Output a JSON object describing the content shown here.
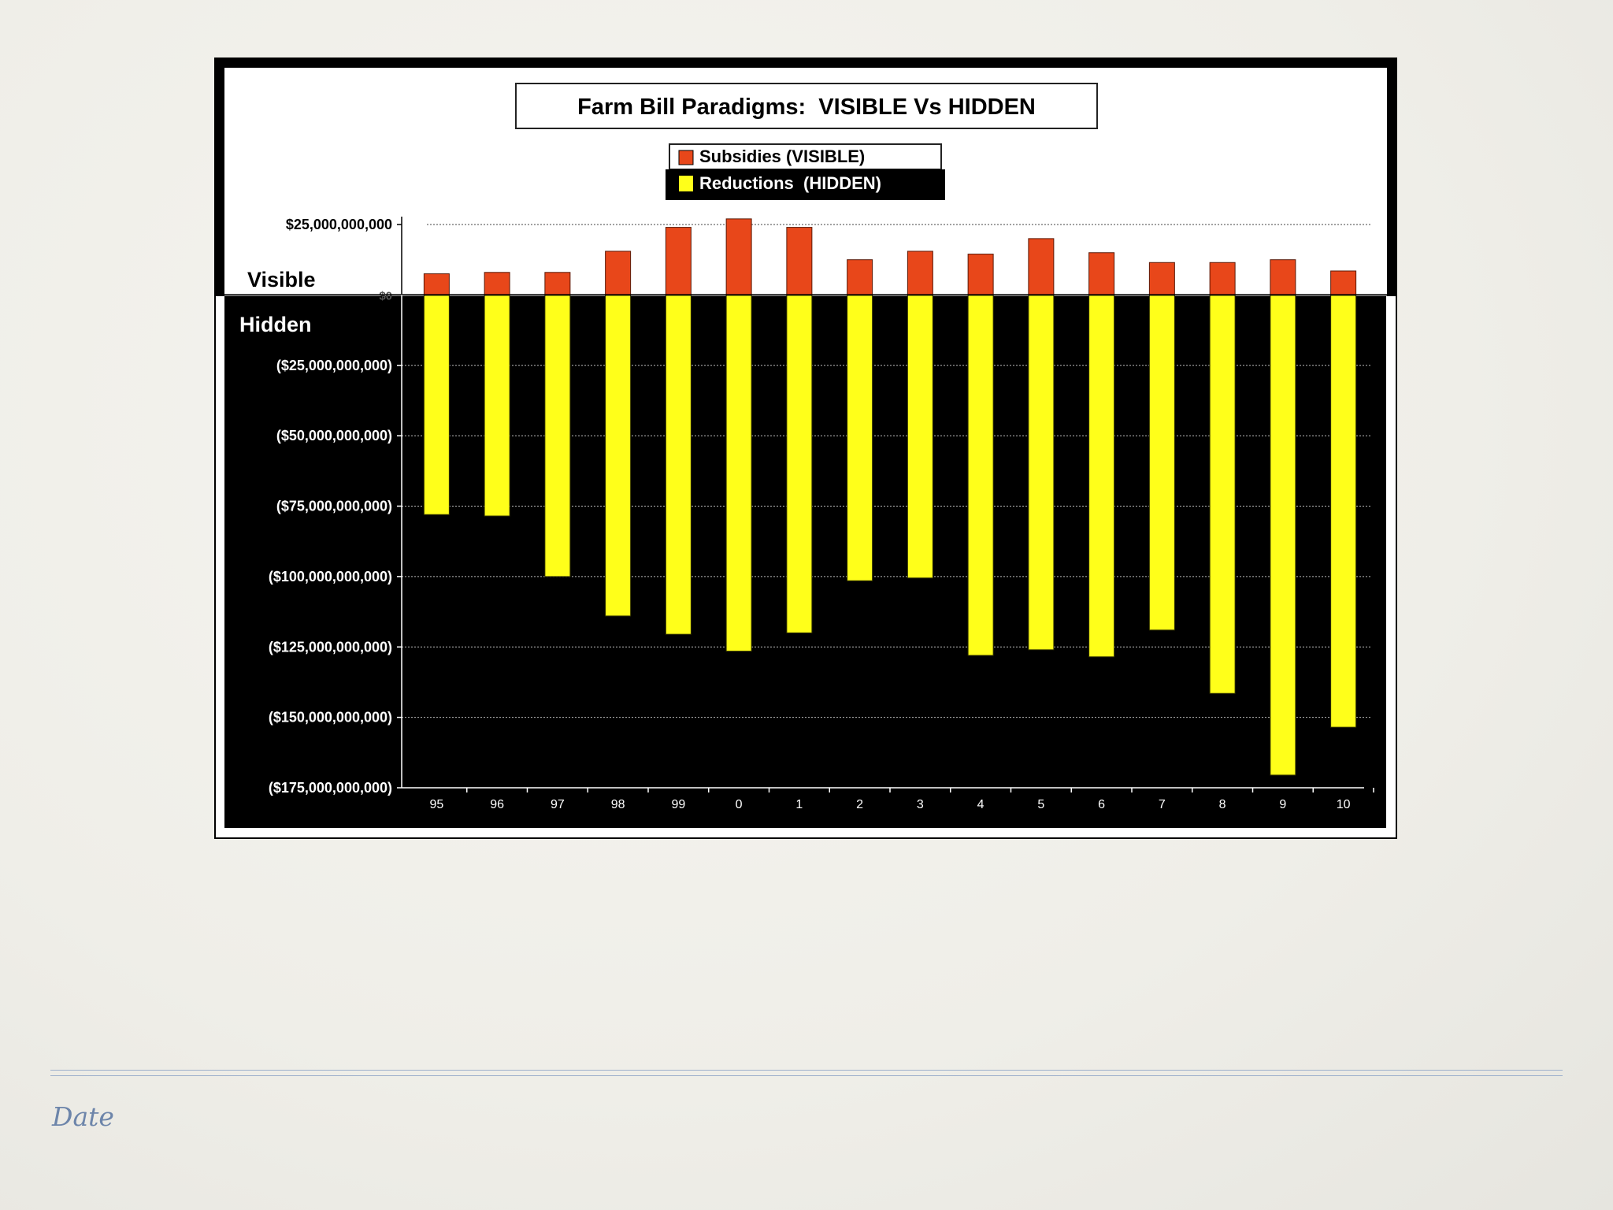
{
  "slide": {
    "footer": {
      "date": "Date"
    }
  },
  "colors": {
    "visible_bar": "#e8471a",
    "hidden_bar": "#ffff1a",
    "frame_dark": "#000000",
    "panel_light": "#ffffff",
    "footer_rule": "#9db0cc"
  },
  "chart_data": {
    "type": "bar",
    "title": "Farm Bill Paradigms:  VISIBLE Vs HIDDEN",
    "region_labels": {
      "top": "Visible",
      "bottom": "Hidden"
    },
    "categories": [
      "95",
      "96",
      "97",
      "98",
      "99",
      "0",
      "1",
      "2",
      "3",
      "4",
      "5",
      "6",
      "7",
      "8",
      "9",
      "10"
    ],
    "series": [
      {
        "name": "Subsidies (VISIBLE)",
        "values": [
          7500000000,
          8000000000,
          8000000000,
          15500000000,
          24000000000,
          27000000000,
          24000000000,
          12500000000,
          15500000000,
          14500000000,
          20000000000,
          15000000000,
          11500000000,
          11500000000,
          12500000000,
          8500000000
        ]
      },
      {
        "name": "Reductions  (HIDDEN)",
        "values": [
          -78000000000,
          -78500000000,
          -100000000000,
          -114000000000,
          -120500000000,
          -126500000000,
          -120000000000,
          -101500000000,
          -100500000000,
          -128000000000,
          -126000000000,
          -128500000000,
          -119000000000,
          -141500000000,
          -170500000000,
          -153500000000
        ]
      }
    ],
    "ylim": [
      -175000000000,
      25000000000
    ],
    "yticks": [
      {
        "value": 25000000000,
        "label": "$25,000,000,000"
      },
      {
        "value": 0,
        "label": "$0"
      },
      {
        "value": -25000000000,
        "label": "($25,000,000,000)"
      },
      {
        "value": -50000000000,
        "label": "($50,000,000,000)"
      },
      {
        "value": -75000000000,
        "label": "($75,000,000,000)"
      },
      {
        "value": -100000000000,
        "label": "($100,000,000,000)"
      },
      {
        "value": -125000000000,
        "label": "($125,000,000,000)"
      },
      {
        "value": -150000000000,
        "label": "($150,000,000,000)"
      },
      {
        "value": -175000000000,
        "label": "($175,000,000,000)"
      }
    ],
    "grid": true,
    "legend_position": "top-center"
  }
}
